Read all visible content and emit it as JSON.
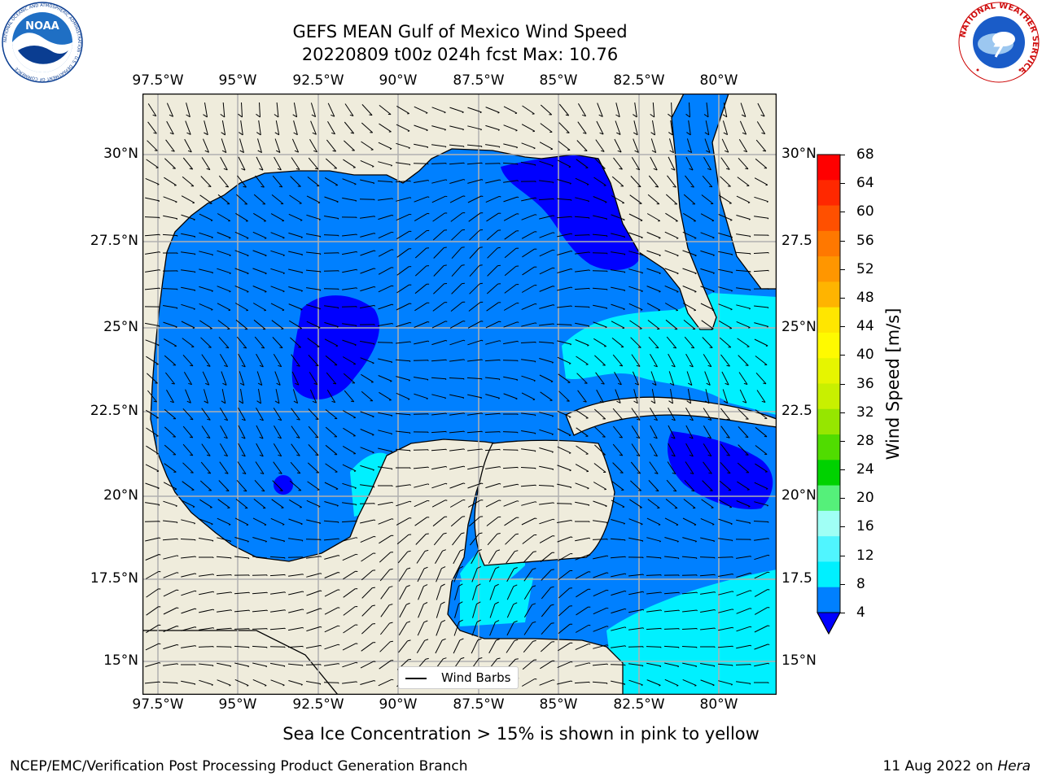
{
  "title": {
    "line1": "GEFS MEAN Gulf of Mexico Wind Speed",
    "line2": "20220809 t00z 024h fcst   Max: 10.76"
  },
  "map": {
    "lon_labels": [
      "97.5°W",
      "95°W",
      "92.5°W",
      "90°W",
      "87.5°W",
      "85°W",
      "82.5°W",
      "80°W"
    ],
    "lat_labels_left": [
      "30°N",
      "27.5°N",
      "25°N",
      "22.5°N",
      "20°N",
      "17.5°N",
      "15°N"
    ],
    "lat_labels_right": [
      "30°N",
      "27.5",
      "25°N",
      "22.5",
      "20°N",
      "17.5",
      "15°N"
    ],
    "legend_label": "Wind Barbs",
    "land_color": "#efecdc"
  },
  "colorbar": {
    "label": "Wind Speed [m/s]",
    "ticks": [
      "68",
      "64",
      "60",
      "56",
      "52",
      "48",
      "44",
      "40",
      "36",
      "32",
      "28",
      "24",
      "20",
      "16",
      "12",
      "8",
      "4"
    ],
    "colors": [
      "#ff0000",
      "#ff2800",
      "#ff5000",
      "#ff7800",
      "#ff9600",
      "#ffb400",
      "#ffe600",
      "#fffa00",
      "#e6f500",
      "#c8f000",
      "#96e600",
      "#50dc00",
      "#00d200",
      "#55f07a",
      "#a0fff5",
      "#50f5ff",
      "#00f0ff",
      "#0080ff"
    ],
    "under_color": "#0000ff"
  },
  "note": "Sea Ice Concentration > 15% is shown in pink to yellow",
  "footer": {
    "left": "NCEP/EMC/Verification Post Processing Product Generation Branch",
    "right_date": "11 Aug 2022 on ",
    "right_host": "Hera"
  },
  "logos": {
    "noaa": "NOAA",
    "noaa_ring": "NATIONAL OCEANIC AND ATMOSPHERIC ADMINISTRATION · U.S. DEPARTMENT OF COMMERCE",
    "nws_ring": "NATIONAL WEATHER SERVICE"
  }
}
